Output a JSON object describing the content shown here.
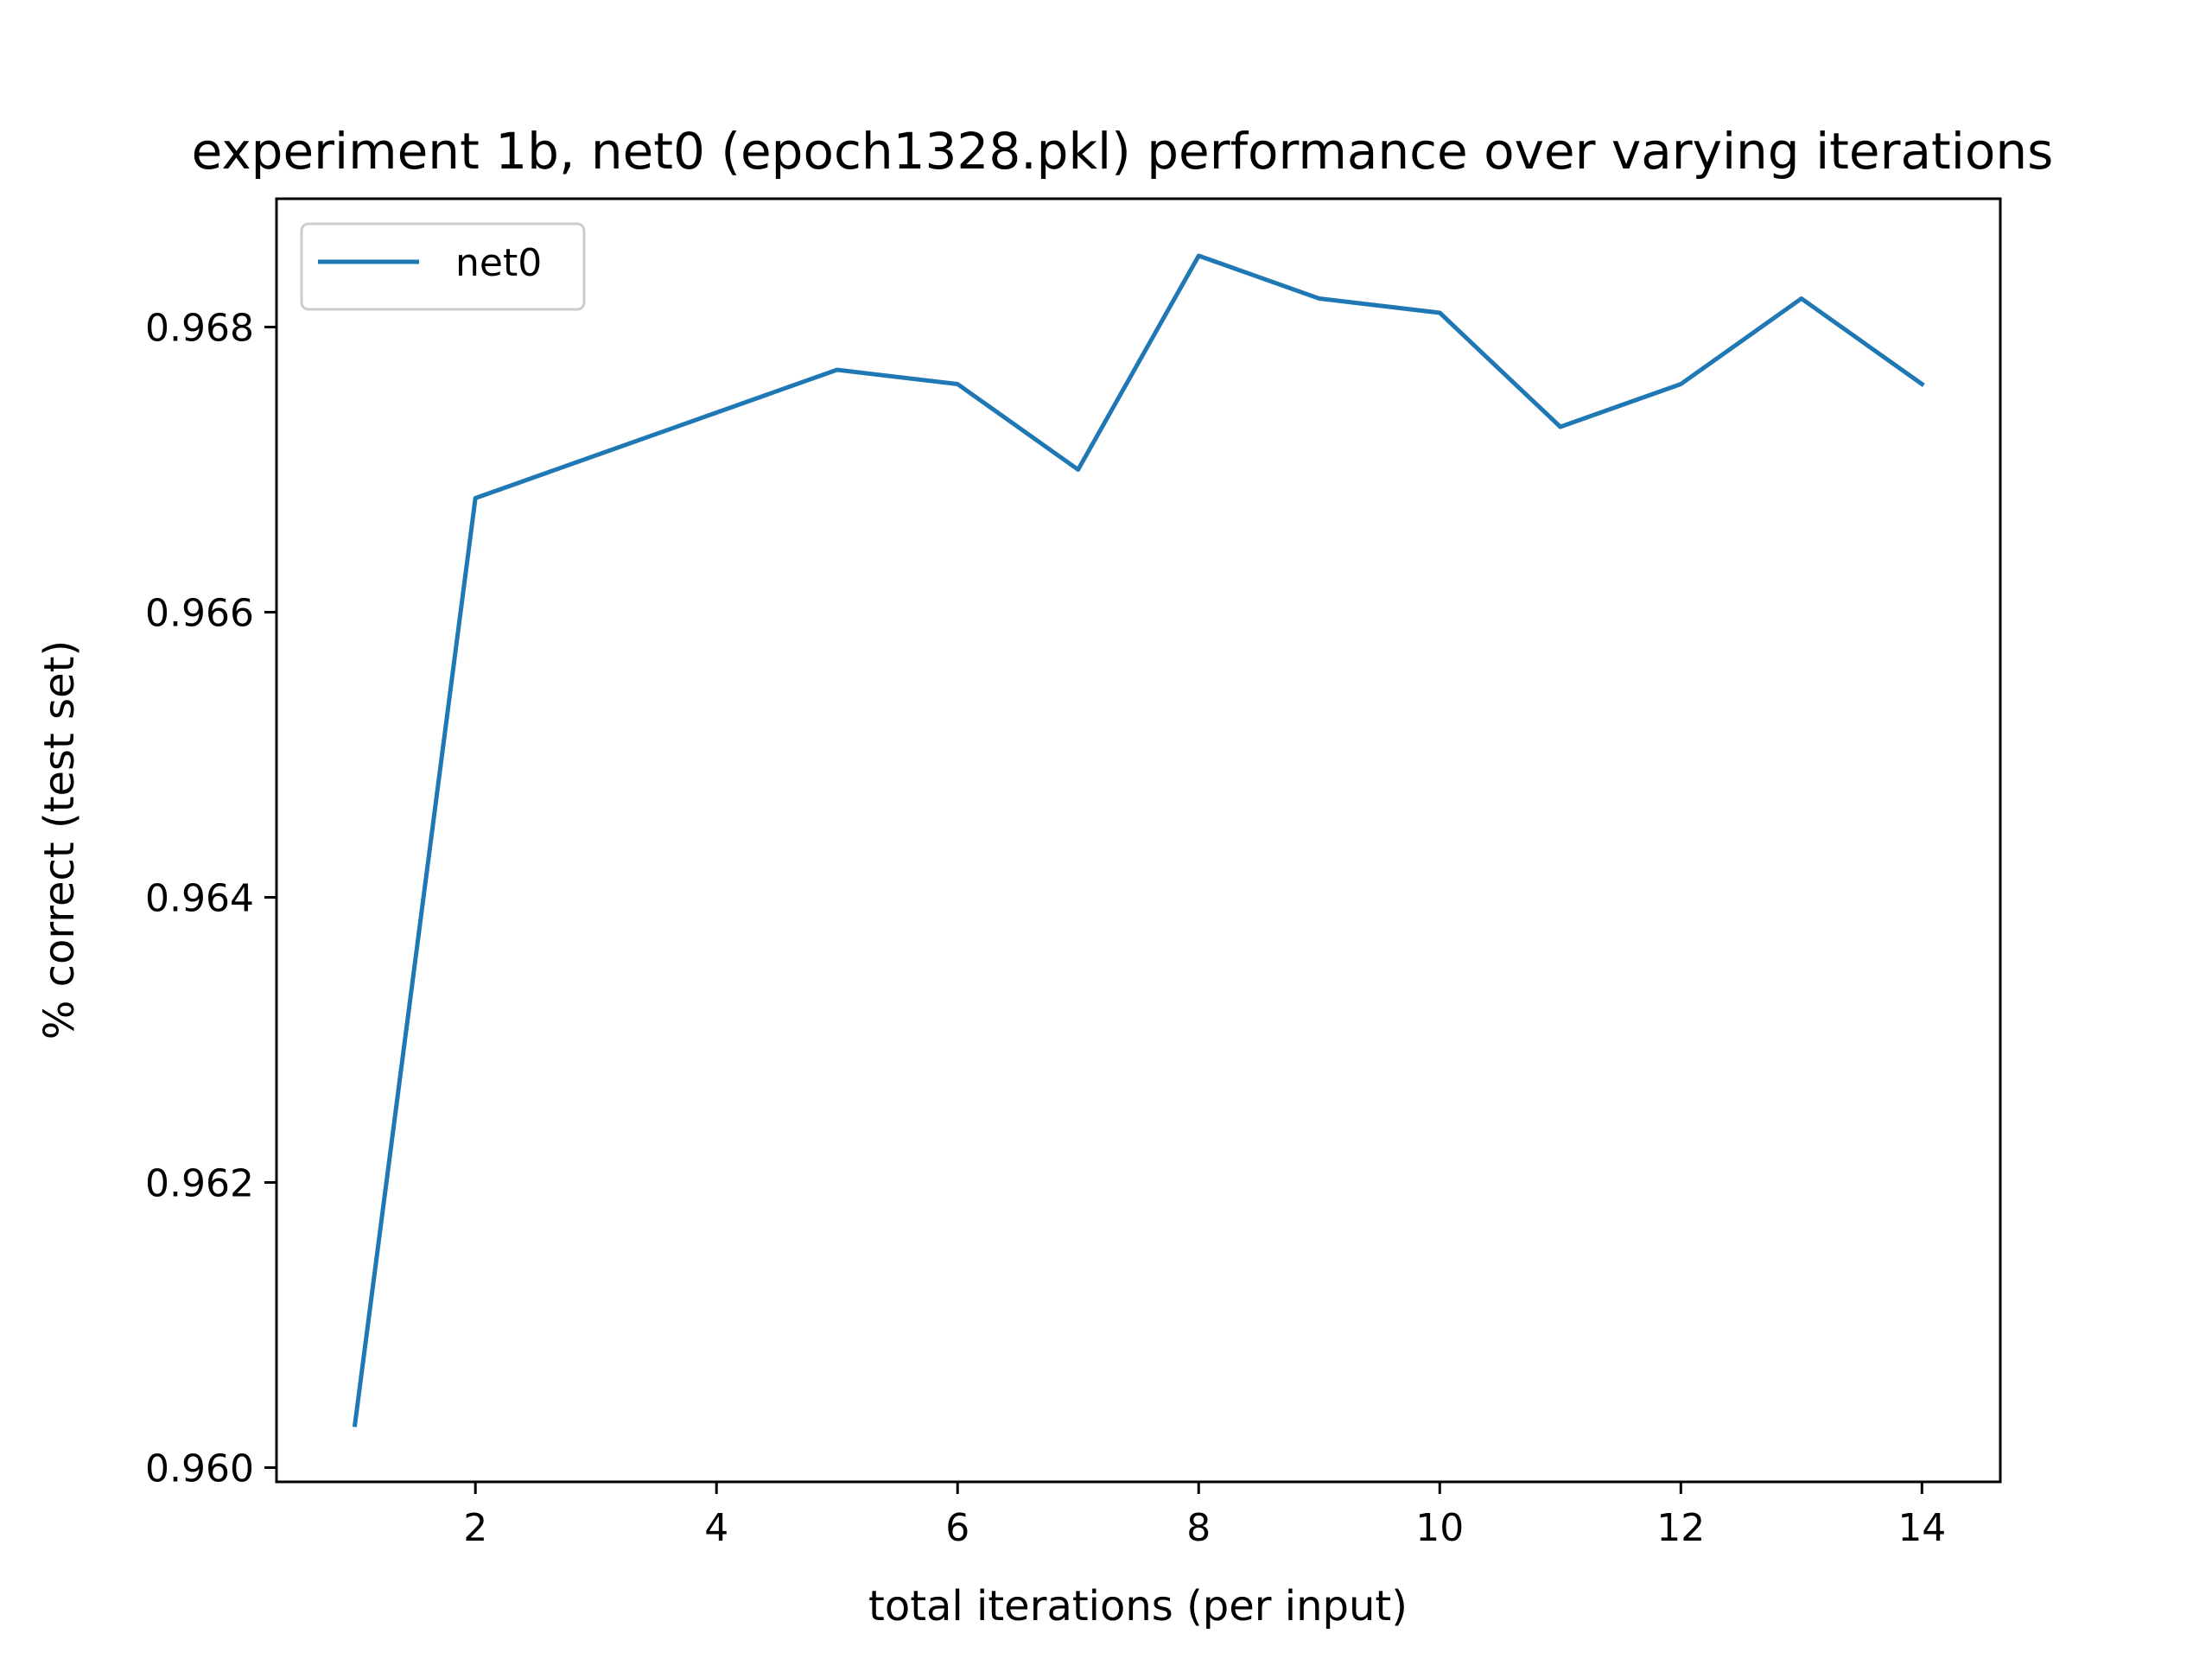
{
  "chart_data": {
    "type": "line",
    "title": "experiment 1b, net0 (epoch1328.pkl) performance over varying iterations",
    "xlabel": "total iterations (per input)",
    "ylabel": "% correct (test set)",
    "xlim": [
      0.35,
      14.65
    ],
    "ylim": [
      0.9599,
      0.9689
    ],
    "xticks": [
      2,
      4,
      6,
      8,
      10,
      12,
      14
    ],
    "xtick_labels": [
      "2",
      "4",
      "6",
      "8",
      "10",
      "12",
      "14"
    ],
    "yticks": [
      0.96,
      0.962,
      0.964,
      0.966,
      0.968
    ],
    "ytick_labels": [
      "0.960",
      "0.962",
      "0.964",
      "0.966",
      "0.968"
    ],
    "grid": false,
    "legend_position": "top-left",
    "series": [
      {
        "name": "net0",
        "color": "#1f77b4",
        "x": [
          1,
          2,
          3,
          4,
          5,
          6,
          7,
          8,
          9,
          10,
          11,
          12,
          13,
          14
        ],
        "y": [
          0.9603,
          0.9668,
          0.9671,
          0.9674,
          0.9677,
          0.9676,
          0.967,
          0.9685,
          0.9682,
          0.9681,
          0.9673,
          0.9676,
          0.9682,
          0.9676
        ]
      }
    ]
  }
}
